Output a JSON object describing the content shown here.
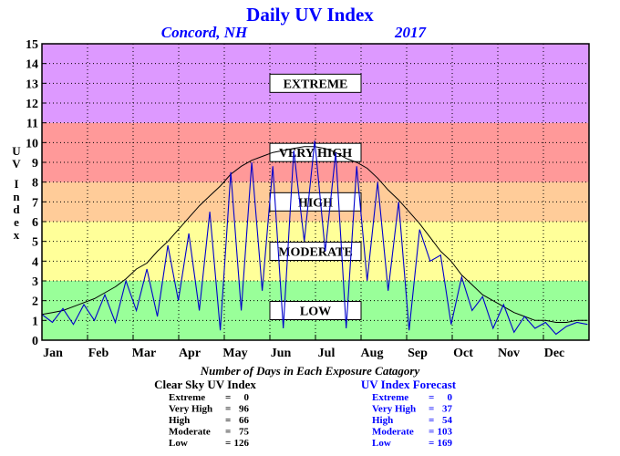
{
  "header": {
    "title": "Daily UV Index",
    "location": "Concord, NH",
    "year": "2017"
  },
  "chart_data": {
    "type": "line",
    "title": "Daily UV Index",
    "ylabel": "UV Index",
    "ylim": [
      0,
      15
    ],
    "yticks": [
      0,
      1,
      2,
      3,
      4,
      5,
      6,
      7,
      8,
      9,
      10,
      11,
      12,
      13,
      14,
      15
    ],
    "x_tick_labels": [
      "Jan",
      "Feb",
      "Mar",
      "Apr",
      "May",
      "Jun",
      "Jul",
      "Aug",
      "Sep",
      "Oct",
      "Nov",
      "Dec"
    ],
    "grid": true,
    "bands": [
      {
        "label": "LOW",
        "from": 0,
        "to": 3,
        "color": "#99ff99"
      },
      {
        "label": "MODERATE",
        "from": 3,
        "to": 6,
        "color": "#ffff99"
      },
      {
        "label": "HIGH",
        "from": 6,
        "to": 8,
        "color": "#ffcc99"
      },
      {
        "label": "VERY HIGH",
        "from": 8,
        "to": 11,
        "color": "#ff9999"
      },
      {
        "label": "EXTREME",
        "from": 11,
        "to": 15,
        "color": "#dd99ff"
      }
    ],
    "series": [
      {
        "name": "Clear Sky UV Index",
        "color": "#000000",
        "step_days": 7,
        "values": [
          1.3,
          1.4,
          1.5,
          1.7,
          1.9,
          2.1,
          2.4,
          2.7,
          3.1,
          3.6,
          3.9,
          4.5,
          5.0,
          5.6,
          6.2,
          6.8,
          7.3,
          7.8,
          8.4,
          8.8,
          9.1,
          9.3,
          9.5,
          9.6,
          9.7,
          9.8,
          9.8,
          9.7,
          9.5,
          9.2,
          9.0,
          8.7,
          8.2,
          7.6,
          7.1,
          6.5,
          5.9,
          5.2,
          4.5,
          4.0,
          3.3,
          2.8,
          2.3,
          2.0,
          1.7,
          1.4,
          1.2,
          1.0,
          1.0,
          0.9,
          0.9,
          1.0,
          1.0
        ]
      },
      {
        "name": "UV Index Forecast",
        "color": "#0000cc",
        "step_days": 7,
        "values": [
          1.3,
          0.9,
          1.6,
          0.8,
          1.8,
          1.0,
          2.3,
          0.9,
          3.0,
          1.5,
          3.6,
          1.2,
          4.8,
          2.0,
          5.4,
          1.5,
          6.5,
          0.5,
          8.5,
          1.5,
          9.0,
          2.5,
          8.8,
          0.6,
          9.6,
          5.0,
          10.1,
          4.5,
          9.5,
          0.6,
          8.8,
          3.0,
          8.0,
          2.5,
          7.0,
          0.5,
          5.6,
          4.0,
          4.3,
          0.8,
          3.2,
          1.5,
          2.2,
          0.6,
          1.8,
          0.4,
          1.2,
          0.6,
          0.9,
          0.3,
          0.7,
          0.9,
          0.8
        ]
      }
    ]
  },
  "stats": {
    "title": "Number of Days in Each Exposure Catagory",
    "clear_sky": {
      "heading": "Clear Sky UV Index",
      "rows": [
        {
          "label": "Extreme",
          "eq": "=",
          "value": "0"
        },
        {
          "label": "Very High",
          "eq": "=",
          "value": "96"
        },
        {
          "label": "High",
          "eq": "=",
          "value": "66"
        },
        {
          "label": "Moderate",
          "eq": "=",
          "value": "75"
        },
        {
          "label": "Low",
          "eq": "=",
          "value": "126"
        }
      ]
    },
    "forecast": {
      "heading": "UV Index Forecast",
      "rows": [
        {
          "label": "Extreme",
          "eq": "=",
          "value": "0"
        },
        {
          "label": "Very High",
          "eq": "=",
          "value": "37"
        },
        {
          "label": "High",
          "eq": "=",
          "value": "54"
        },
        {
          "label": "Moderate",
          "eq": "=",
          "value": "103"
        },
        {
          "label": "Low",
          "eq": "=",
          "value": "169"
        }
      ]
    }
  },
  "colors": {
    "title": "#0000ff",
    "forecast_text": "#0000ff",
    "clear_sky_text": "#000000"
  }
}
